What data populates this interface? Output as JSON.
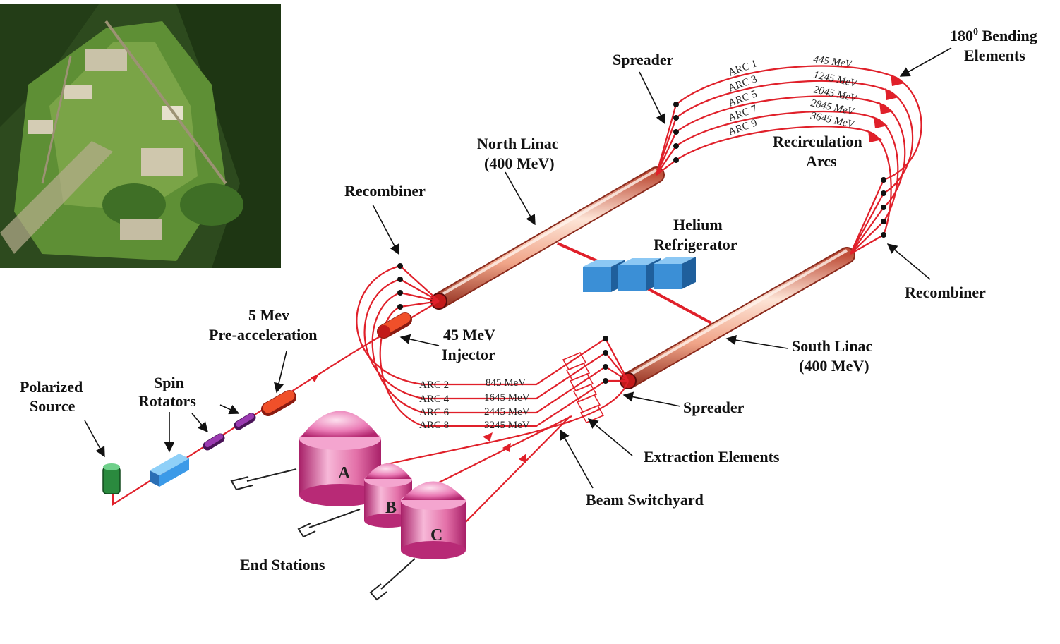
{
  "labels": {
    "bending": "Bending",
    "bending_sup": "0",
    "bending_num": "180",
    "bending_line2": "Elements",
    "spreader_top": "Spreader",
    "north_linac_1": "North Linac",
    "north_linac_2": "(400 MeV)",
    "recirc_1": "Recirculation",
    "recirc_2": "Arcs",
    "recombiner_left": "Recombiner",
    "helium_1": "Helium",
    "helium_2": "Refrigerator",
    "recombiner_right": "Recombiner",
    "preacc_1": "5 Mev",
    "preacc_2": "Pre-acceleration",
    "injector_1": "45 MeV",
    "injector_2": "Injector",
    "south_linac_1": "South Linac",
    "south_linac_2": "(400 MeV)",
    "polarized_1": "Polarized",
    "polarized_2": "Source",
    "spin_1": "Spin",
    "spin_2": "Rotators",
    "spreader_bottom": "Spreader",
    "extraction": "Extraction Elements",
    "switchyard": "Beam Switchyard",
    "end_stations": "End Stations",
    "hall_a": "A",
    "hall_b": "B",
    "hall_c": "C"
  },
  "odd_arcs": [
    {
      "arc": "ARC 1",
      "energy": "445 MeV"
    },
    {
      "arc": "ARC 3",
      "energy": "1245 MeV"
    },
    {
      "arc": "ARC 5",
      "energy": "2045 MeV"
    },
    {
      "arc": "ARC 7",
      "energy": "2845 MeV"
    },
    {
      "arc": "ARC 9",
      "energy": "3645 MeV"
    }
  ],
  "even_arcs": [
    {
      "arc": "ARC 2",
      "energy": "845 MeV"
    },
    {
      "arc": "ARC 4",
      "energy": "1645 MeV"
    },
    {
      "arc": "ARC 6",
      "energy": "2445 MeV"
    },
    {
      "arc": "ARC 8",
      "energy": "3245 MeV"
    }
  ],
  "colors": {
    "beam": "#e0202a",
    "linac": "#f4a98e",
    "refrigerator": "#3b8fd6",
    "hall": "#d9388f",
    "source": "#2a8a3e",
    "rotator": "#7a2a8a",
    "photo_field": "#4f7d2e"
  }
}
